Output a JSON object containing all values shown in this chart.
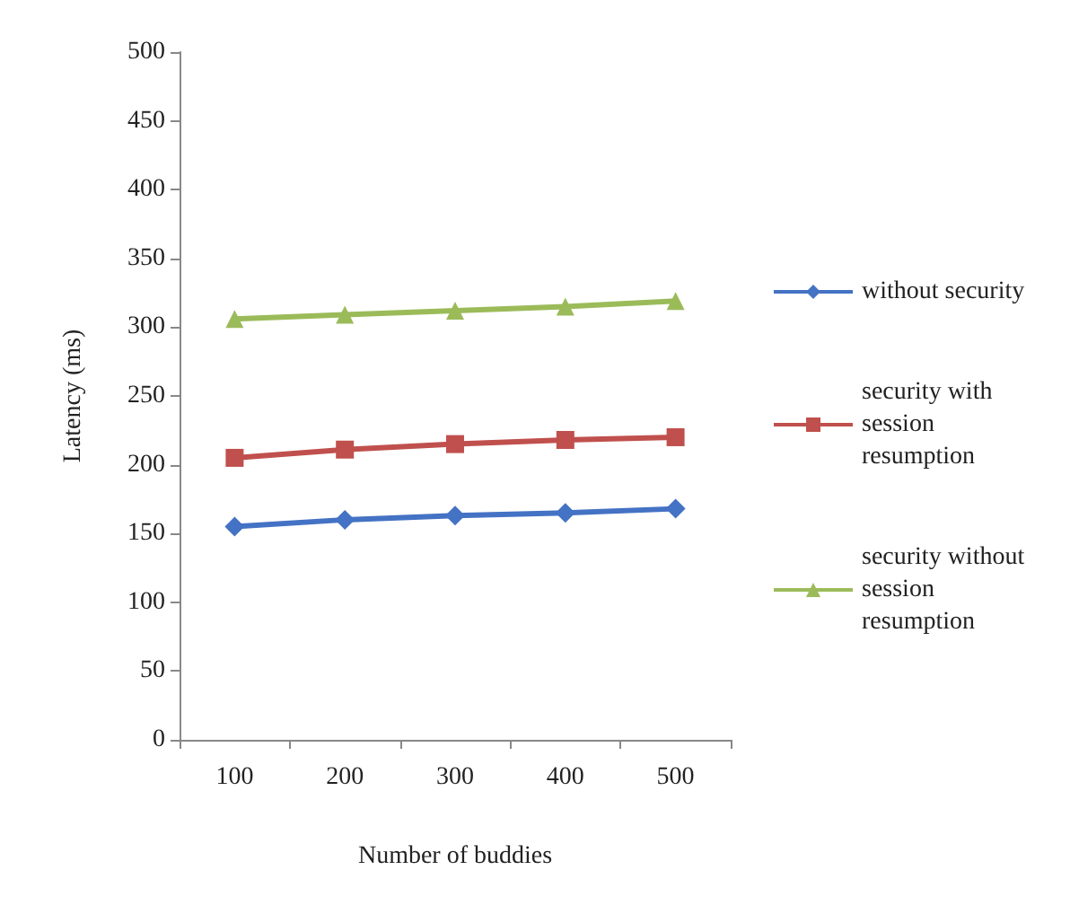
{
  "chart_data": {
    "type": "line",
    "xlabel": "Number of buddies",
    "ylabel": "Latency (ms)",
    "categories": [
      "100",
      "200",
      "300",
      "400",
      "500"
    ],
    "ylim": [
      0,
      500
    ],
    "yticks": [
      0,
      50,
      100,
      150,
      200,
      250,
      300,
      350,
      400,
      450,
      500
    ],
    "grid": false,
    "legend": "right",
    "series": [
      {
        "name": "without security",
        "color": "#4472c4",
        "marker": "diamond",
        "values": [
          155,
          160,
          163,
          165,
          168
        ]
      },
      {
        "name": "security with session resumption",
        "color": "#c0504d",
        "marker": "square",
        "values": [
          205,
          211,
          215,
          218,
          220
        ]
      },
      {
        "name": "security without session resumption",
        "color": "#9bbb59",
        "marker": "triangle",
        "values": [
          306,
          309,
          312,
          315,
          319
        ]
      }
    ]
  }
}
